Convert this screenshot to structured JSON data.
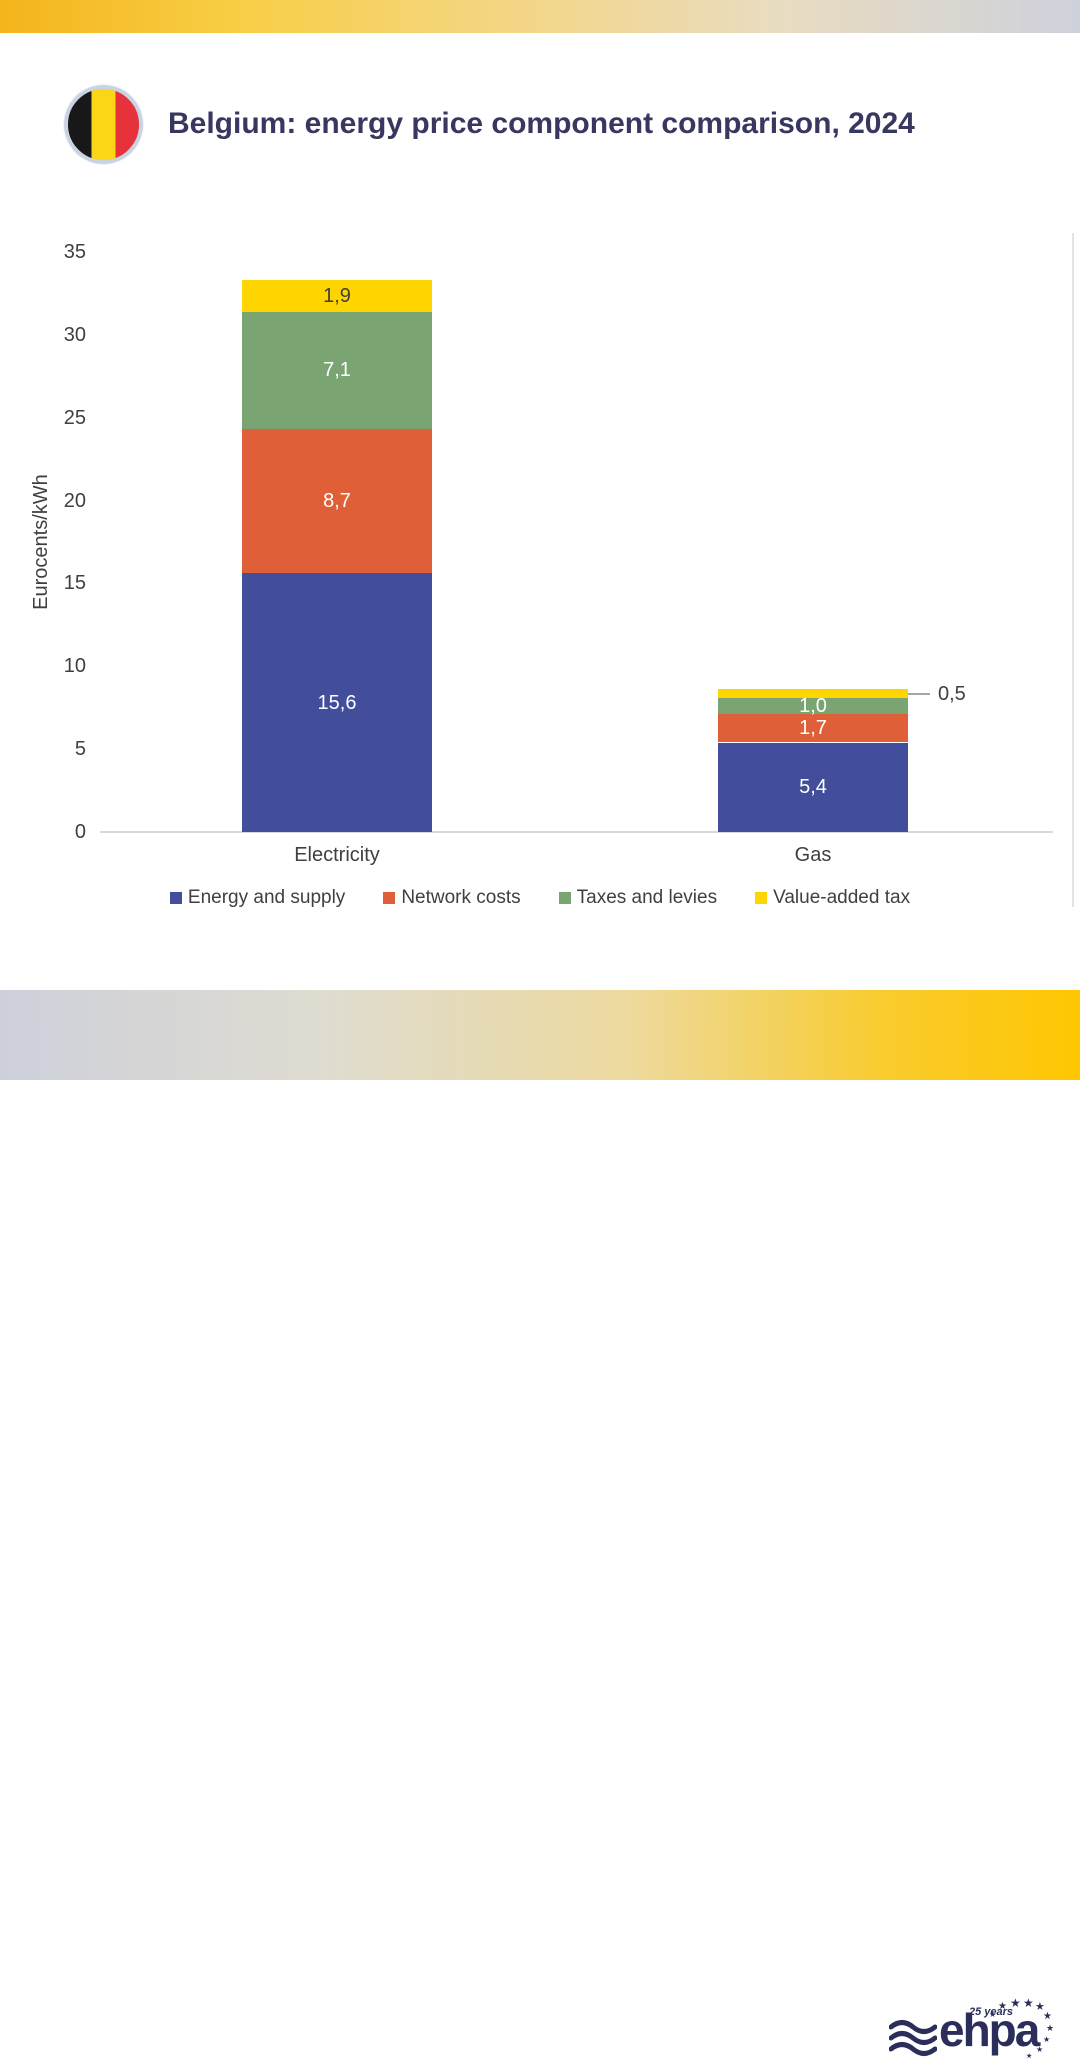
{
  "header": {
    "title": "Belgium: energy price component comparison, 2024",
    "flag_icon": "belgium-flag",
    "flag_colors": [
      "#181818",
      "#FAD616",
      "#E6333B"
    ],
    "title_color": "#37375F"
  },
  "chart_data": {
    "type": "bar",
    "stacked": true,
    "categories": [
      "Electricity",
      "Gas"
    ],
    "series": [
      {
        "name": "Energy and supply",
        "color": "#424D9C",
        "label_color": "#FFFFFF",
        "values": [
          15.6,
          5.4
        ]
      },
      {
        "name": "Network costs",
        "color": "#DF6038",
        "label_color": "#FFFFFF",
        "values": [
          8.7,
          1.7
        ]
      },
      {
        "name": "Taxes and levies",
        "color": "#7AA471",
        "label_color": "#FFFFFF",
        "values": [
          7.1,
          1.0
        ]
      },
      {
        "name": "Value-added tax",
        "color": "#FFD500",
        "label_color": "#404040",
        "values": [
          1.9,
          0.5
        ]
      }
    ],
    "totals": [
      33.3,
      8.6
    ],
    "ylabel": "Eurocents/kWh",
    "ylim": [
      0,
      35
    ],
    "ytick_step": 5,
    "grid": false,
    "legend_position": "bottom",
    "decimal_separator": ",",
    "callout": {
      "category": "Gas",
      "series": "Value-added tax",
      "label": "0,5"
    }
  },
  "footer": {
    "logo_text": "ehpa",
    "logo_subtext": "25 years",
    "star_glyph": "★",
    "logo_color": "#2B2E5A"
  }
}
